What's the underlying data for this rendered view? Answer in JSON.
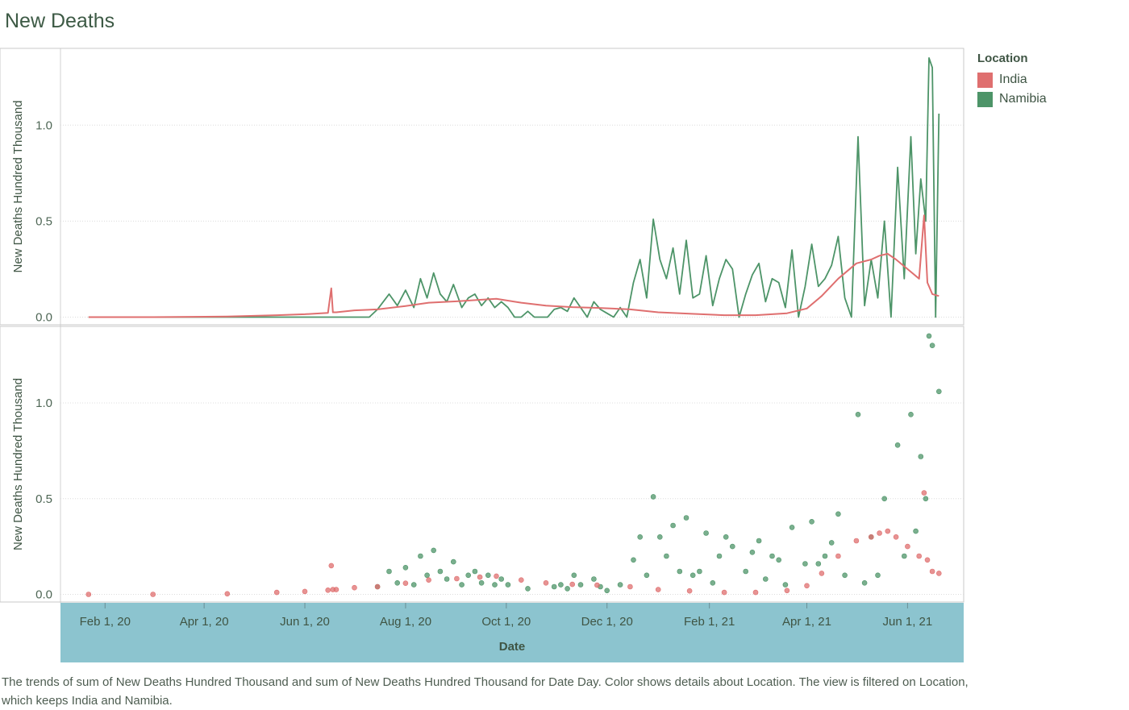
{
  "title": "New Deaths",
  "legend": {
    "title": "Location",
    "items": [
      {
        "label": "India",
        "color": "#df6f6f"
      },
      {
        "label": "Namibia",
        "color": "#4d9468"
      }
    ]
  },
  "caption": "The trends of sum of New Deaths Hundred Thousand and sum of New Deaths Hundred Thousand for Date Day.  Color shows details about Location. The view is filtered on Location, which keeps India and Namibia.",
  "colors": {
    "axis_band": "#8cc4cf",
    "line_panel_border": "#c8c8c8",
    "india": "#df6f6f",
    "namibia": "#4d9468"
  },
  "chart_data": [
    {
      "type": "line",
      "panel": "top",
      "ylabel": "New Deaths Hundred Thousand",
      "ylim": [
        -0.04,
        1.4
      ],
      "yticks": [
        "0.0",
        "0.5",
        "1.0"
      ],
      "ytick_values": [
        0,
        0.5,
        1.0
      ],
      "grid": true,
      "series": [
        {
          "name": "India",
          "x": [
            "2020-01-22",
            "2020-03-01",
            "2020-04-15",
            "2020-05-15",
            "2020-06-01",
            "2020-06-15",
            "2020-06-17",
            "2020-06-18",
            "2020-06-20",
            "2020-07-01",
            "2020-07-15",
            "2020-08-01",
            "2020-08-15",
            "2020-09-01",
            "2020-09-15",
            "2020-09-25",
            "2020-10-10",
            "2020-10-25",
            "2020-11-10",
            "2020-11-25",
            "2020-12-15",
            "2021-01-01",
            "2021-01-20",
            "2021-02-10",
            "2021-03-01",
            "2021-03-20",
            "2021-04-01",
            "2021-04-10",
            "2021-04-20",
            "2021-05-01",
            "2021-05-10",
            "2021-05-15",
            "2021-05-20",
            "2021-05-25",
            "2021-06-01",
            "2021-06-08",
            "2021-06-11",
            "2021-06-13",
            "2021-06-16",
            "2021-06-20"
          ],
          "values": [
            0,
            0,
            0.003,
            0.01,
            0.015,
            0.022,
            0.15,
            0.025,
            0.025,
            0.035,
            0.04,
            0.058,
            0.075,
            0.082,
            0.09,
            0.095,
            0.075,
            0.06,
            0.052,
            0.048,
            0.04,
            0.025,
            0.018,
            0.01,
            0.01,
            0.02,
            0.045,
            0.11,
            0.2,
            0.28,
            0.3,
            0.32,
            0.33,
            0.3,
            0.25,
            0.2,
            0.53,
            0.18,
            0.12,
            0.11
          ]
        },
        {
          "name": "Namibia",
          "x": [
            "2020-01-22",
            "2020-07-10",
            "2020-07-15",
            "2020-07-22",
            "2020-07-27",
            "2020-08-01",
            "2020-08-06",
            "2020-08-10",
            "2020-08-14",
            "2020-08-18",
            "2020-08-22",
            "2020-08-26",
            "2020-08-30",
            "2020-09-04",
            "2020-09-08",
            "2020-09-12",
            "2020-09-16",
            "2020-09-20",
            "2020-09-24",
            "2020-09-28",
            "2020-10-02",
            "2020-10-06",
            "2020-10-10",
            "2020-10-14",
            "2020-10-18",
            "2020-10-22",
            "2020-10-26",
            "2020-10-30",
            "2020-11-03",
            "2020-11-07",
            "2020-11-11",
            "2020-11-15",
            "2020-11-19",
            "2020-11-23",
            "2020-11-27",
            "2020-12-01",
            "2020-12-05",
            "2020-12-09",
            "2020-12-13",
            "2020-12-17",
            "2020-12-21",
            "2020-12-25",
            "2020-12-29",
            "2021-01-02",
            "2021-01-06",
            "2021-01-10",
            "2021-01-14",
            "2021-01-18",
            "2021-01-22",
            "2021-01-26",
            "2021-01-30",
            "2021-02-03",
            "2021-02-07",
            "2021-02-11",
            "2021-02-15",
            "2021-02-19",
            "2021-02-23",
            "2021-02-27",
            "2021-03-03",
            "2021-03-07",
            "2021-03-11",
            "2021-03-15",
            "2021-03-19",
            "2021-03-23",
            "2021-03-27",
            "2021-03-31",
            "2021-04-04",
            "2021-04-08",
            "2021-04-12",
            "2021-04-16",
            "2021-04-20",
            "2021-04-24",
            "2021-04-28",
            "2021-05-02",
            "2021-05-06",
            "2021-05-10",
            "2021-05-14",
            "2021-05-18",
            "2021-05-22",
            "2021-05-26",
            "2021-05-30",
            "2021-06-03",
            "2021-06-06",
            "2021-06-09",
            "2021-06-12",
            "2021-06-14",
            "2021-06-16",
            "2021-06-18",
            "2021-06-20"
          ],
          "values": [
            0,
            0,
            0.04,
            0.12,
            0.06,
            0.14,
            0.05,
            0.2,
            0.1,
            0.23,
            0.12,
            0.08,
            0.17,
            0.05,
            0.1,
            0.12,
            0.06,
            0.1,
            0.05,
            0.08,
            0.05,
            0.0,
            0.0,
            0.03,
            0.0,
            0.0,
            0.0,
            0.04,
            0.05,
            0.03,
            0.1,
            0.05,
            0.0,
            0.08,
            0.04,
            0.02,
            0.0,
            0.05,
            0.0,
            0.18,
            0.3,
            0.1,
            0.51,
            0.3,
            0.2,
            0.36,
            0.12,
            0.4,
            0.1,
            0.12,
            0.32,
            0.06,
            0.2,
            0.3,
            0.25,
            0.0,
            0.12,
            0.22,
            0.28,
            0.08,
            0.2,
            0.18,
            0.05,
            0.35,
            0.0,
            0.16,
            0.38,
            0.16,
            0.2,
            0.27,
            0.42,
            0.1,
            0.0,
            0.94,
            0.06,
            0.3,
            0.1,
            0.5,
            0.0,
            0.78,
            0.2,
            0.94,
            0.33,
            0.72,
            0.5,
            1.35,
            1.3,
            0.0,
            1.06
          ]
        }
      ]
    },
    {
      "type": "scatter",
      "panel": "bottom",
      "ylabel": "New Deaths Hundred Thousand",
      "xlabel": "Date",
      "ylim": [
        -0.04,
        1.4
      ],
      "yticks": [
        "0.0",
        "0.5",
        "1.0"
      ],
      "ytick_values": [
        0,
        0.5,
        1.0
      ],
      "xticks": [
        "Feb 1, 20",
        "Apr 1, 20",
        "Jun 1, 20",
        "Aug 1, 20",
        "Oct 1, 20",
        "Dec 1, 20",
        "Feb 1, 21",
        "Apr 1, 21",
        "Jun 1, 21"
      ],
      "xtick_dates": [
        "2020-02-01",
        "2020-04-01",
        "2020-06-01",
        "2020-08-01",
        "2020-10-01",
        "2020-12-01",
        "2021-02-01",
        "2021-04-01",
        "2021-06-01"
      ],
      "xlim": [
        "2020-01-05",
        "2021-07-05"
      ],
      "grid": true,
      "series": [
        {
          "name": "India",
          "x": [
            "2020-01-22",
            "2020-03-01",
            "2020-04-15",
            "2020-05-15",
            "2020-06-01",
            "2020-06-15",
            "2020-06-17",
            "2020-06-18",
            "2020-06-20",
            "2020-07-01",
            "2020-07-15",
            "2020-08-01",
            "2020-08-15",
            "2020-09-01",
            "2020-09-15",
            "2020-09-25",
            "2020-10-10",
            "2020-10-25",
            "2020-11-10",
            "2020-11-25",
            "2020-12-15",
            "2021-01-01",
            "2021-01-20",
            "2021-02-10",
            "2021-03-01",
            "2021-03-20",
            "2021-04-01",
            "2021-04-10",
            "2021-04-20",
            "2021-05-01",
            "2021-05-10",
            "2021-05-15",
            "2021-05-20",
            "2021-05-25",
            "2021-06-01",
            "2021-06-08",
            "2021-06-11",
            "2021-06-13",
            "2021-06-16",
            "2021-06-20"
          ],
          "values": [
            0,
            0,
            0.003,
            0.01,
            0.015,
            0.022,
            0.15,
            0.025,
            0.025,
            0.035,
            0.04,
            0.058,
            0.075,
            0.082,
            0.09,
            0.095,
            0.075,
            0.06,
            0.052,
            0.048,
            0.04,
            0.025,
            0.018,
            0.01,
            0.01,
            0.02,
            0.045,
            0.11,
            0.2,
            0.28,
            0.3,
            0.32,
            0.33,
            0.3,
            0.25,
            0.2,
            0.53,
            0.18,
            0.12,
            0.11
          ]
        },
        {
          "name": "Namibia",
          "x": [
            "2020-07-15",
            "2020-07-22",
            "2020-07-27",
            "2020-08-01",
            "2020-08-06",
            "2020-08-10",
            "2020-08-14",
            "2020-08-18",
            "2020-08-22",
            "2020-08-26",
            "2020-08-30",
            "2020-09-04",
            "2020-09-08",
            "2020-09-12",
            "2020-09-16",
            "2020-09-20",
            "2020-09-24",
            "2020-09-28",
            "2020-10-02",
            "2020-10-14",
            "2020-10-30",
            "2020-11-03",
            "2020-11-07",
            "2020-11-11",
            "2020-11-15",
            "2020-11-23",
            "2020-11-27",
            "2020-12-01",
            "2020-12-09",
            "2020-12-17",
            "2020-12-21",
            "2020-12-25",
            "2020-12-29",
            "2021-01-02",
            "2021-01-06",
            "2021-01-10",
            "2021-01-14",
            "2021-01-18",
            "2021-01-22",
            "2021-01-26",
            "2021-01-30",
            "2021-02-03",
            "2021-02-07",
            "2021-02-11",
            "2021-02-15",
            "2021-02-23",
            "2021-02-27",
            "2021-03-03",
            "2021-03-07",
            "2021-03-11",
            "2021-03-15",
            "2021-03-19",
            "2021-03-23",
            "2021-03-31",
            "2021-04-04",
            "2021-04-08",
            "2021-04-12",
            "2021-04-16",
            "2021-04-20",
            "2021-04-24",
            "2021-05-02",
            "2021-05-06",
            "2021-05-10",
            "2021-05-14",
            "2021-05-18",
            "2021-05-26",
            "2021-05-30",
            "2021-06-03",
            "2021-06-06",
            "2021-06-09",
            "2021-06-12",
            "2021-06-14",
            "2021-06-16",
            "2021-06-20"
          ],
          "values": [
            0.04,
            0.12,
            0.06,
            0.14,
            0.05,
            0.2,
            0.1,
            0.23,
            0.12,
            0.08,
            0.17,
            0.05,
            0.1,
            0.12,
            0.06,
            0.1,
            0.05,
            0.08,
            0.05,
            0.03,
            0.04,
            0.05,
            0.03,
            0.1,
            0.05,
            0.08,
            0.04,
            0.02,
            0.05,
            0.18,
            0.3,
            0.1,
            0.51,
            0.3,
            0.2,
            0.36,
            0.12,
            0.4,
            0.1,
            0.12,
            0.32,
            0.06,
            0.2,
            0.3,
            0.25,
            0.12,
            0.22,
            0.28,
            0.08,
            0.2,
            0.18,
            0.05,
            0.35,
            0.16,
            0.38,
            0.16,
            0.2,
            0.27,
            0.42,
            0.1,
            0.94,
            0.06,
            0.3,
            0.1,
            0.5,
            0.78,
            0.2,
            0.94,
            0.33,
            0.72,
            0.5,
            1.35,
            1.3,
            1.06
          ]
        }
      ]
    }
  ]
}
